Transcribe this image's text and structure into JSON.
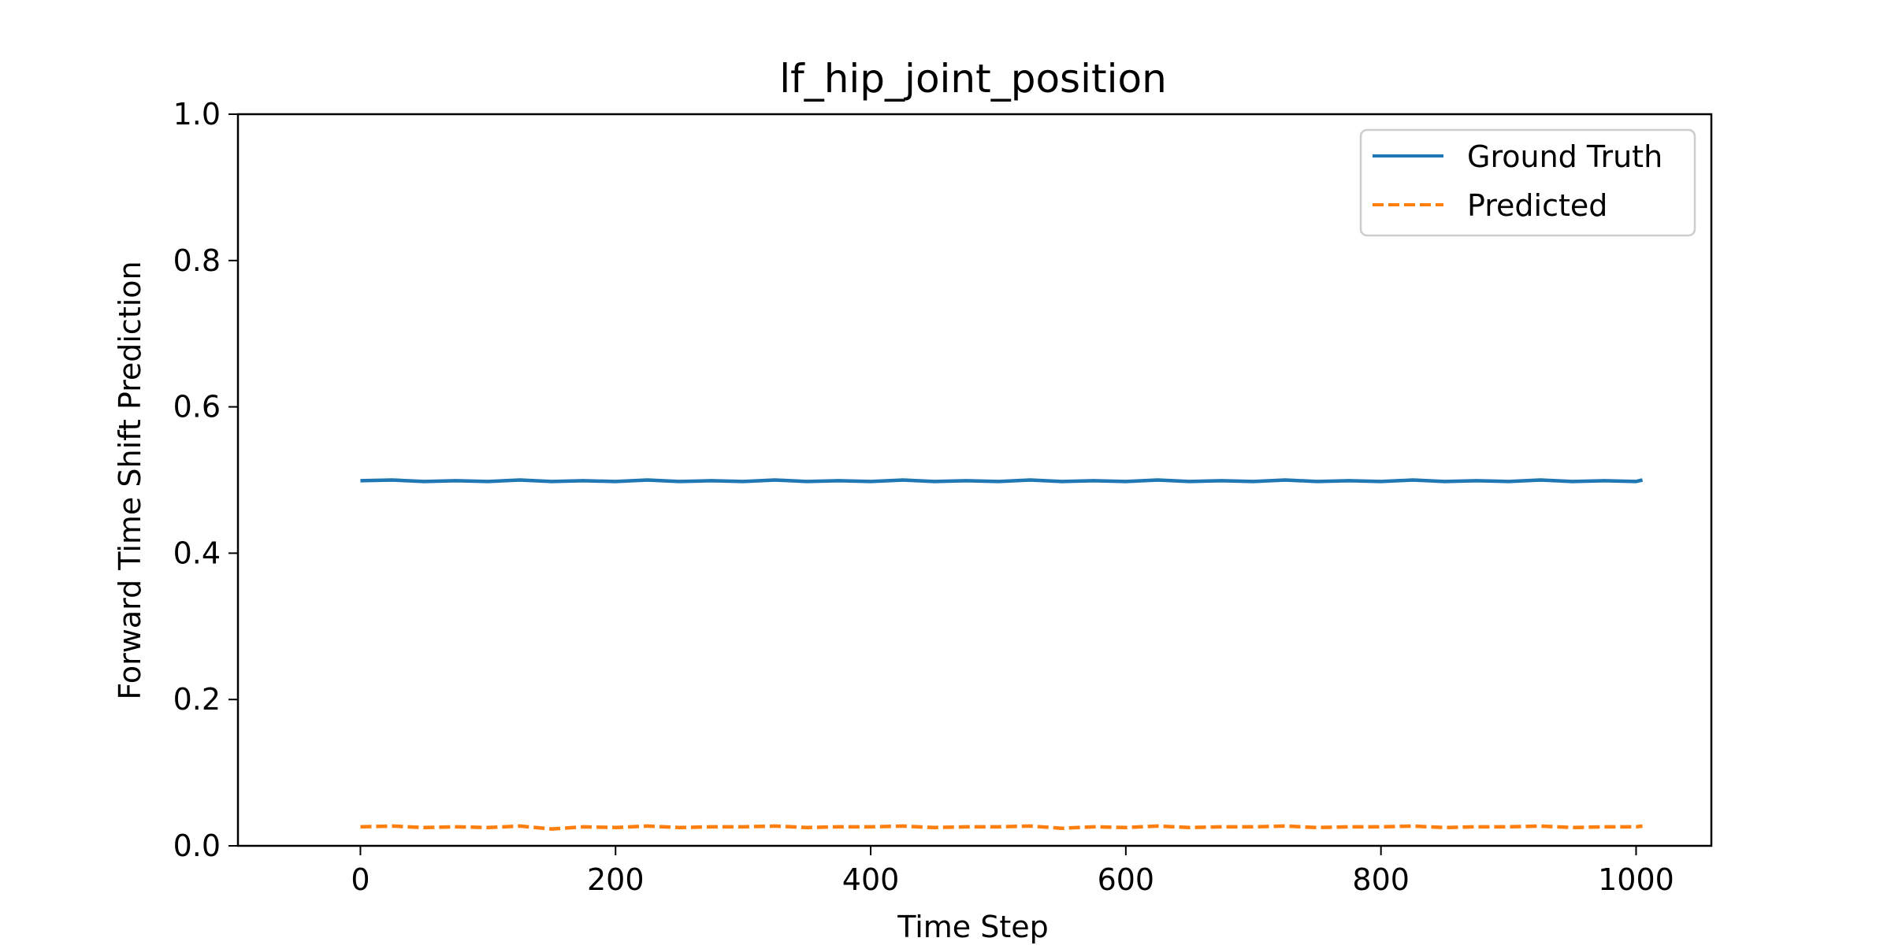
{
  "chart_data": {
    "type": "line",
    "title": "lf_hip_joint_position",
    "xlabel": "Time Step",
    "ylabel": "Forward Time Shift Prediction",
    "xlim": [
      -96,
      1059
    ],
    "ylim": [
      0.0,
      1.0
    ],
    "xticks": [
      0,
      200,
      400,
      600,
      800,
      1000
    ],
    "xtick_labels": [
      "0",
      "200",
      "400",
      "600",
      "800",
      "1000"
    ],
    "yticks": [
      0.0,
      0.2,
      0.4,
      0.6,
      0.8,
      1.0
    ],
    "ytick_labels": [
      "0.0",
      "0.2",
      "0.4",
      "0.6",
      "0.8",
      "1.0"
    ],
    "grid": false,
    "legend_position": "top-right",
    "series": [
      {
        "name": "Ground Truth",
        "color": "#1f77b4",
        "style": "solid",
        "x": [
          0,
          25,
          50,
          75,
          100,
          125,
          150,
          175,
          200,
          225,
          250,
          275,
          300,
          325,
          350,
          375,
          400,
          425,
          450,
          475,
          500,
          525,
          550,
          575,
          600,
          625,
          650,
          675,
          700,
          725,
          750,
          775,
          800,
          825,
          850,
          875,
          900,
          925,
          950,
          975,
          1000,
          1005
        ],
        "y": [
          0.499,
          0.5,
          0.498,
          0.499,
          0.498,
          0.5,
          0.498,
          0.499,
          0.498,
          0.5,
          0.498,
          0.499,
          0.498,
          0.5,
          0.498,
          0.499,
          0.498,
          0.5,
          0.498,
          0.499,
          0.498,
          0.5,
          0.498,
          0.499,
          0.498,
          0.5,
          0.498,
          0.499,
          0.498,
          0.5,
          0.498,
          0.499,
          0.498,
          0.5,
          0.498,
          0.499,
          0.498,
          0.5,
          0.498,
          0.499,
          0.498,
          0.5
        ]
      },
      {
        "name": "Predicted",
        "color": "#ff7f0e",
        "style": "dashed",
        "x": [
          0,
          25,
          50,
          75,
          100,
          125,
          150,
          175,
          200,
          225,
          250,
          275,
          300,
          325,
          350,
          375,
          400,
          425,
          450,
          475,
          500,
          525,
          550,
          575,
          600,
          625,
          650,
          675,
          700,
          725,
          750,
          775,
          800,
          825,
          850,
          875,
          900,
          925,
          950,
          975,
          1000,
          1005
        ],
        "y": [
          0.026,
          0.027,
          0.025,
          0.026,
          0.025,
          0.027,
          0.023,
          0.026,
          0.025,
          0.027,
          0.025,
          0.026,
          0.026,
          0.027,
          0.025,
          0.026,
          0.026,
          0.027,
          0.025,
          0.026,
          0.026,
          0.027,
          0.024,
          0.026,
          0.025,
          0.027,
          0.025,
          0.026,
          0.026,
          0.027,
          0.025,
          0.026,
          0.026,
          0.027,
          0.025,
          0.026,
          0.026,
          0.027,
          0.025,
          0.026,
          0.026,
          0.027
        ]
      }
    ]
  }
}
